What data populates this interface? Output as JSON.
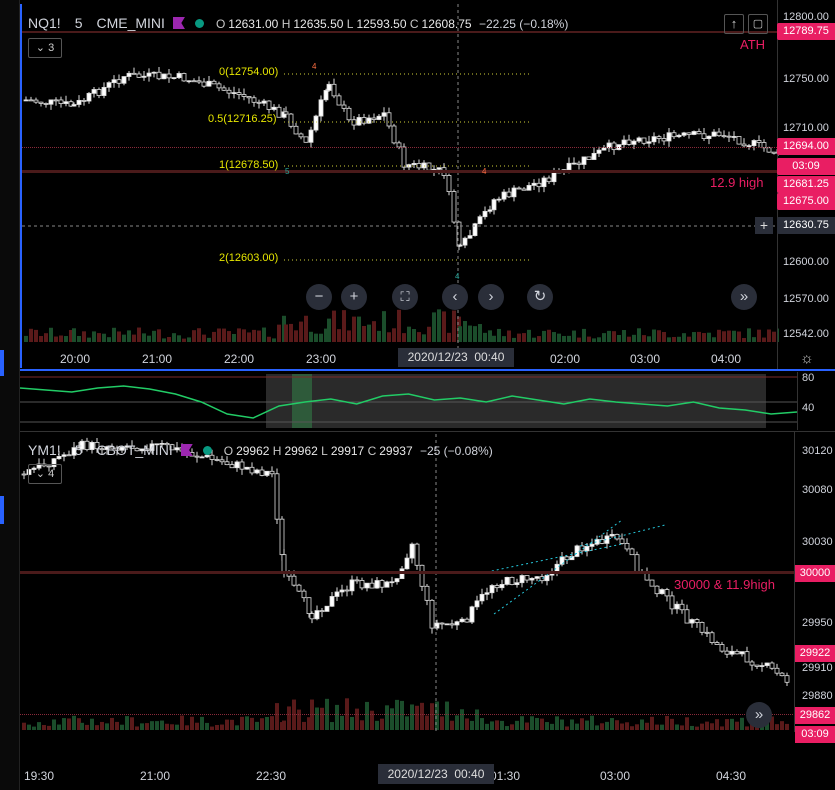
{
  "top_chart": {
    "symbol": "NQ1!",
    "interval": "5",
    "exchange": "CME_MINI",
    "ohlc": {
      "o_label": "O",
      "o": "12631.00",
      "h_label": "H",
      "h": "12635.50",
      "l_label": "L",
      "l": "12593.50",
      "c_label": "C",
      "c": "12608.75",
      "change": "−22.25 (−0.18%)"
    },
    "collapse_count": "3",
    "y_ticks": [
      "12800.00",
      "12750.00",
      "12710.00",
      "12600.00",
      "12570.00",
      "12542.00"
    ],
    "price_pills": [
      {
        "text": "12789.75",
        "color": "#e91e63"
      },
      {
        "text": "12694.00",
        "color": "#e91e63"
      },
      {
        "text": "03:09",
        "color": "#e91e63"
      },
      {
        "text": "12681.25",
        "color": "#e91e63"
      },
      {
        "text": "12675.00",
        "color": "#e91e63"
      },
      {
        "text": "12630.75",
        "color": "#2a2e39"
      }
    ],
    "x_ticks": [
      "20:00",
      "21:00",
      "22:00",
      "23:00",
      "02:00",
      "03:00",
      "04:00"
    ],
    "crosshair_date": "2020/12/23  00:40",
    "annotations": {
      "ath": "ATH",
      "high": "12.9 high"
    },
    "fib_levels": [
      "0(12754.00)",
      "0.5(12716.25)",
      "1(12678.50)",
      "2(12603.00)"
    ],
    "markers": {
      "a": "4",
      "b": "5",
      "c": "4",
      "d": "4"
    }
  },
  "oscillator": {
    "y_ticks": [
      "80",
      "40"
    ]
  },
  "bottom_chart": {
    "symbol": "YM1!",
    "interval": "5",
    "exchange": "CBOT_MINI",
    "ohlc": {
      "o_label": "O",
      "o": "29962",
      "h_label": "H",
      "h": "29962",
      "l_label": "L",
      "l": "29917",
      "c_label": "C",
      "c": "29937",
      "change": "−25 (−0.08%)"
    },
    "collapse_count": "4",
    "y_ticks": [
      "30120",
      "30080",
      "30030",
      "29950",
      "29910",
      "29880"
    ],
    "price_pills": [
      {
        "text": "30000",
        "color": "#e91e63"
      },
      {
        "text": "29922",
        "color": "#e91e63"
      },
      {
        "text": "29862",
        "color": "#e91e63"
      },
      {
        "text": "03:09",
        "color": "#e91e63"
      }
    ],
    "x_ticks": [
      "19:30",
      "21:00",
      "22:30",
      "01:30",
      "03:00",
      "04:30"
    ],
    "crosshair_date": "2020/12/23  00:40",
    "annotations": {
      "high": "30000 & 11.9high"
    }
  },
  "toolbar_icons": [
    "zoom-out-icon",
    "zoom-in-icon",
    "fullscreen-icon",
    "scroll-left-icon",
    "scroll-right-icon",
    "reset-icon",
    "jump-to-realtime-icon"
  ],
  "colors": {
    "up": "#ffffff",
    "down": "#000000",
    "accent_red": "#e91e63",
    "volume_up": "#1b4d2b",
    "volume_down": "#5a1a1a",
    "fib": "#e6e600",
    "osc": "#22cc66",
    "osc_hi": "#ef5350"
  }
}
